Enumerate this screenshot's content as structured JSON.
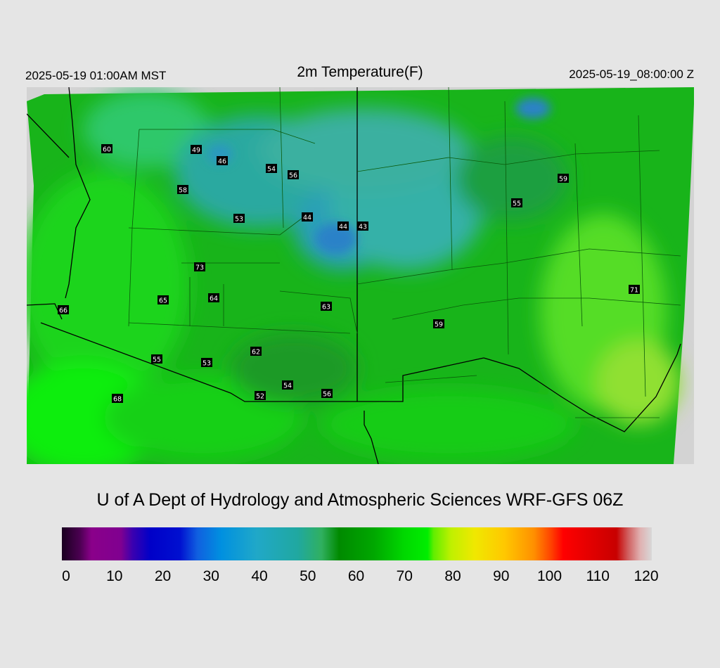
{
  "header": {
    "local_time": "2025-05-19 01:00AM MST",
    "title": "2m Temperature(F)",
    "utc_time": "2025-05-19_08:00:00 Z"
  },
  "credit": "U of A Dept of Hydrology and Atmospheric Sciences WRF-GFS 06Z",
  "colorbar": {
    "ticks": [
      "0",
      "10",
      "20",
      "30",
      "40",
      "50",
      "60",
      "70",
      "80",
      "90",
      "100",
      "110",
      "120"
    ],
    "range": [
      0,
      120
    ]
  },
  "stations": [
    {
      "value": "60"
    },
    {
      "value": "49"
    },
    {
      "value": "46"
    },
    {
      "value": "54"
    },
    {
      "value": "56"
    },
    {
      "value": "58"
    },
    {
      "value": "53"
    },
    {
      "value": "44"
    },
    {
      "value": "44"
    },
    {
      "value": "43"
    },
    {
      "value": "59"
    },
    {
      "value": "55"
    },
    {
      "value": "73"
    },
    {
      "value": "65"
    },
    {
      "value": "64"
    },
    {
      "value": "63"
    },
    {
      "value": "71"
    },
    {
      "value": "59"
    },
    {
      "value": "66"
    },
    {
      "value": "62"
    },
    {
      "value": "55"
    },
    {
      "value": "53"
    },
    {
      "value": "54"
    },
    {
      "value": "52"
    },
    {
      "value": "56"
    },
    {
      "value": "68"
    }
  ],
  "colors": {
    "background": "#e5e5e5",
    "map_nodata": "#d3d3d3",
    "cold_region": "#2fb3a8",
    "warm_region": "#00ee00",
    "boundary": "#000000"
  }
}
